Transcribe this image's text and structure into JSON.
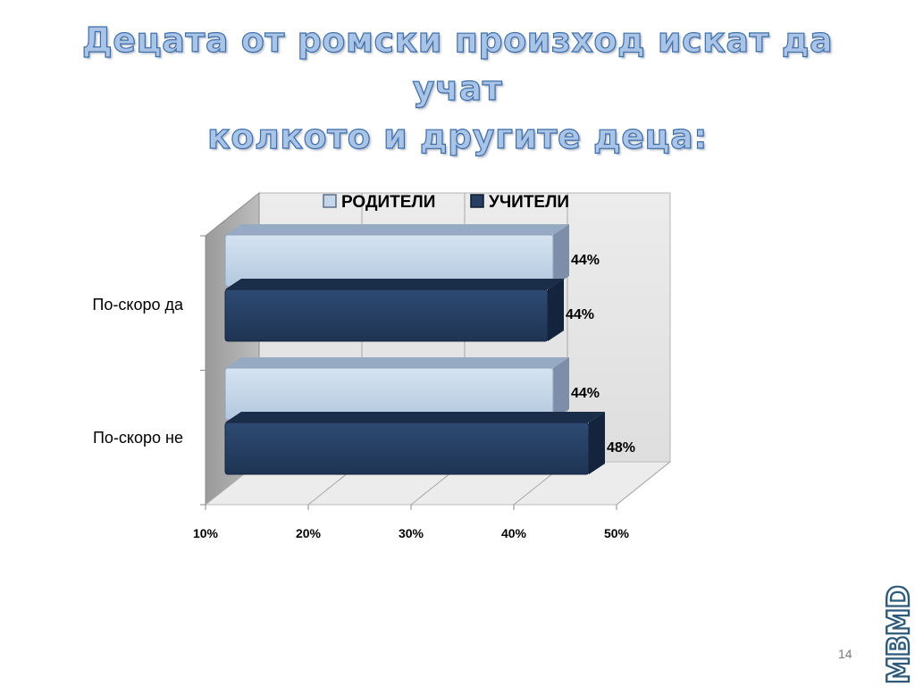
{
  "slide": {
    "title_line1": "Децата от ромски произход искат да учат",
    "title_line2": "колкото и другите деца:",
    "page_number": "14",
    "logo_text": "MBMD"
  },
  "colors": {
    "parents_face": "#c4d6e8",
    "parents_top": "#97aac4",
    "parents_side": "#7d8fa8",
    "teachers_face": "#263f63",
    "teachers_top": "#1a2e4a",
    "teachers_side": "#14243c",
    "wall": "#e6e6e6",
    "side_wall": "#a9a9a9",
    "floor": "#ececec",
    "title_fill": "#a9c4e6",
    "title_stroke": "#3e6ea8"
  },
  "chart_data": {
    "type": "bar",
    "orientation": "horizontal",
    "style": "3d",
    "categories": [
      "По-скоро да",
      "По-скоро не"
    ],
    "series": [
      {
        "name": "РОДИТЕЛИ",
        "values": [
          44,
          44
        ],
        "labels": [
          "44%",
          "44%"
        ]
      },
      {
        "name": "УЧИТЕЛИ",
        "values": [
          44,
          48
        ],
        "labels": [
          "44%",
          "48%"
        ]
      }
    ],
    "xlim": [
      10,
      50
    ],
    "xticks": [
      10,
      20,
      30,
      40,
      50
    ],
    "xtick_labels": [
      "10%",
      "20%",
      "30%",
      "40%",
      "50%"
    ],
    "grid": true,
    "legend_position": "top"
  }
}
